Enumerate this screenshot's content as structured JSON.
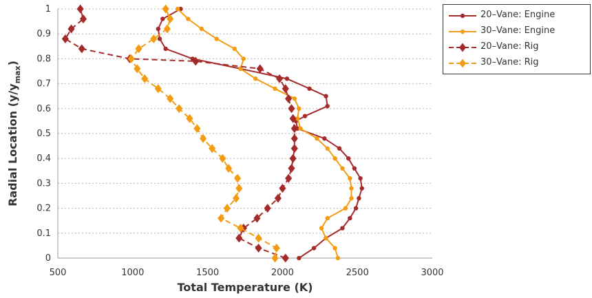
{
  "chart_data": {
    "type": "line",
    "xlabel": "Total Temperature (K)",
    "ylabel": "Radial Location (y/y",
    "ylabel_sub": "max",
    "ylabel_close": ")",
    "xlim": [
      500,
      3000
    ],
    "ylim": [
      0,
      1
    ],
    "xticks": [
      "500",
      "1000",
      "1500",
      "2000",
      "2500",
      "3000"
    ],
    "yticks": [
      "0",
      "0.1",
      "0.2",
      "0.3",
      "0.4",
      "0.5",
      "0.6",
      "0.7",
      "0.8",
      "0.9",
      "1"
    ],
    "grid": "horizontal dotted",
    "legend_position": "top-right",
    "series": [
      {
        "name": "20–Vane: Engine",
        "color": "#a52a2a",
        "style": "solid",
        "marker": "circle",
        "points": [
          [
            2110,
            0.0
          ],
          [
            2210,
            0.04
          ],
          [
            2290,
            0.08
          ],
          [
            2400,
            0.12
          ],
          [
            2450,
            0.16
          ],
          [
            2490,
            0.2
          ],
          [
            2510,
            0.24
          ],
          [
            2530,
            0.28
          ],
          [
            2520,
            0.32
          ],
          [
            2480,
            0.36
          ],
          [
            2440,
            0.4
          ],
          [
            2380,
            0.44
          ],
          [
            2280,
            0.48
          ],
          [
            2100,
            0.52
          ],
          [
            2090,
            0.55
          ],
          [
            2150,
            0.57
          ],
          [
            2300,
            0.61
          ],
          [
            2290,
            0.65
          ],
          [
            2180,
            0.68
          ],
          [
            2030,
            0.72
          ],
          [
            1720,
            0.76
          ],
          [
            1400,
            0.8
          ],
          [
            1220,
            0.84
          ],
          [
            1180,
            0.88
          ],
          [
            1170,
            0.92
          ],
          [
            1200,
            0.96
          ],
          [
            1320,
            1.0
          ]
        ]
      },
      {
        "name": "30–Vane: Engine",
        "color": "#f39c12",
        "style": "solid",
        "marker": "circle",
        "points": [
          [
            2370,
            0.0
          ],
          [
            2350,
            0.04
          ],
          [
            2290,
            0.08
          ],
          [
            2260,
            0.12
          ],
          [
            2300,
            0.16
          ],
          [
            2420,
            0.2
          ],
          [
            2460,
            0.24
          ],
          [
            2460,
            0.28
          ],
          [
            2450,
            0.32
          ],
          [
            2400,
            0.36
          ],
          [
            2350,
            0.4
          ],
          [
            2300,
            0.44
          ],
          [
            2230,
            0.48
          ],
          [
            2120,
            0.52
          ],
          [
            2100,
            0.56
          ],
          [
            2110,
            0.6
          ],
          [
            2080,
            0.64
          ],
          [
            1950,
            0.68
          ],
          [
            1820,
            0.72
          ],
          [
            1720,
            0.76
          ],
          [
            1740,
            0.8
          ],
          [
            1680,
            0.84
          ],
          [
            1560,
            0.88
          ],
          [
            1460,
            0.92
          ],
          [
            1370,
            0.96
          ],
          [
            1300,
            1.0
          ]
        ]
      },
      {
        "name": "20–Vane: Rig",
        "color": "#a52a2a",
        "style": "dashed",
        "marker": "diamond",
        "points": [
          [
            2020,
            0.0
          ],
          [
            1840,
            0.04
          ],
          [
            1710,
            0.08
          ],
          [
            1740,
            0.12
          ],
          [
            1830,
            0.16
          ],
          [
            1900,
            0.2
          ],
          [
            1970,
            0.24
          ],
          [
            2000,
            0.28
          ],
          [
            2040,
            0.32
          ],
          [
            2060,
            0.36
          ],
          [
            2070,
            0.4
          ],
          [
            2080,
            0.44
          ],
          [
            2080,
            0.48
          ],
          [
            2080,
            0.52
          ],
          [
            2070,
            0.56
          ],
          [
            2060,
            0.6
          ],
          [
            2040,
            0.64
          ],
          [
            2020,
            0.68
          ],
          [
            1980,
            0.72
          ],
          [
            1850,
            0.76
          ],
          [
            1420,
            0.79
          ],
          [
            980,
            0.8
          ],
          [
            660,
            0.84
          ],
          [
            550,
            0.88
          ],
          [
            590,
            0.92
          ],
          [
            670,
            0.96
          ],
          [
            650,
            1.0
          ]
        ]
      },
      {
        "name": "30–Vane: Rig",
        "color": "#f39c12",
        "style": "dashed",
        "marker": "diamond",
        "points": [
          [
            1950,
            0.0
          ],
          [
            1960,
            0.04
          ],
          [
            1840,
            0.08
          ],
          [
            1720,
            0.12
          ],
          [
            1590,
            0.16
          ],
          [
            1630,
            0.2
          ],
          [
            1690,
            0.24
          ],
          [
            1710,
            0.28
          ],
          [
            1700,
            0.32
          ],
          [
            1640,
            0.36
          ],
          [
            1600,
            0.4
          ],
          [
            1530,
            0.44
          ],
          [
            1470,
            0.48
          ],
          [
            1430,
            0.52
          ],
          [
            1380,
            0.56
          ],
          [
            1310,
            0.6
          ],
          [
            1250,
            0.64
          ],
          [
            1170,
            0.68
          ],
          [
            1080,
            0.72
          ],
          [
            1030,
            0.76
          ],
          [
            990,
            0.8
          ],
          [
            1040,
            0.84
          ],
          [
            1140,
            0.88
          ],
          [
            1230,
            0.92
          ],
          [
            1250,
            0.96
          ],
          [
            1220,
            1.0
          ]
        ]
      }
    ]
  }
}
